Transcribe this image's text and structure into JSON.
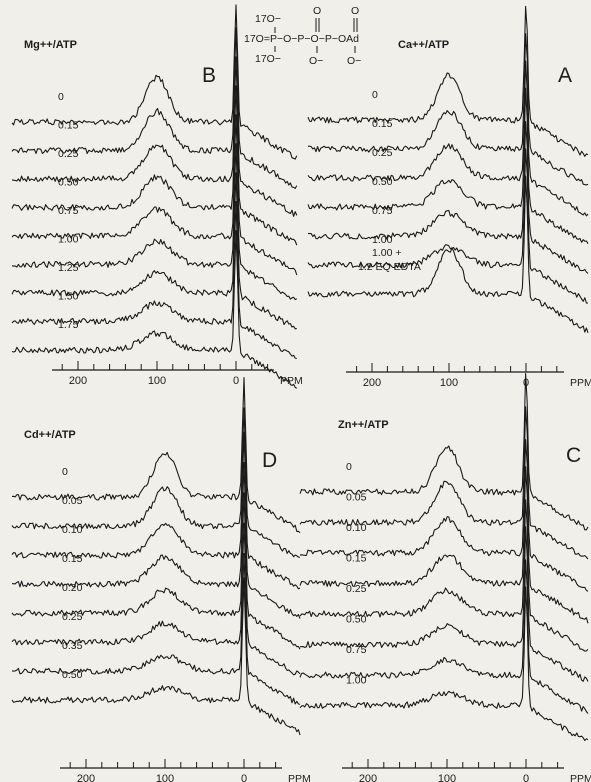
{
  "structure": {
    "top_line": "17O−",
    "mid_line": "17O=P−O−P−O−P−OAd",
    "bottom_line": "17O−",
    "double_bond_o": "O",
    "minus_o": "O−"
  },
  "chart_data": [
    {
      "type": "line",
      "panel": "B",
      "title": "Mg++/ATP",
      "letter": "B",
      "xlabel": "PPM",
      "x_ticks": [
        "200",
        "100",
        "0"
      ],
      "xlim": [
        230,
        -40
      ],
      "x_reversed": true,
      "series": [
        {
          "name": "0",
          "peak_ppm": 100,
          "peak_height": 1.0
        },
        {
          "name": "0.15",
          "peak_ppm": 100,
          "peak_height": 0.85
        },
        {
          "name": "0.25",
          "peak_ppm": 100,
          "peak_height": 0.72
        },
        {
          "name": "0.50",
          "peak_ppm": 100,
          "peak_height": 0.6
        },
        {
          "name": "0.75",
          "peak_ppm": 100,
          "peak_height": 0.5
        },
        {
          "name": "1.00",
          "peak_ppm": 100,
          "peak_height": 0.4
        },
        {
          "name": "1.25",
          "peak_ppm": 100,
          "peak_height": 0.32
        },
        {
          "name": "1.50",
          "peak_ppm": 100,
          "peak_height": 0.27
        },
        {
          "name": "1.75",
          "peak_ppm": 100,
          "peak_height": 0.23
        }
      ]
    },
    {
      "type": "line",
      "panel": "A",
      "title": "Ca++/ATP",
      "letter": "A",
      "xlabel": "PPM",
      "x_ticks": [
        "200",
        "100",
        "0"
      ],
      "xlim": [
        230,
        -40
      ],
      "x_reversed": true,
      "series": [
        {
          "name": "0",
          "peak_ppm": 100,
          "peak_height": 1.0
        },
        {
          "name": "0.15",
          "peak_ppm": 100,
          "peak_height": 0.8
        },
        {
          "name": "0.25",
          "peak_ppm": 100,
          "peak_height": 0.65
        },
        {
          "name": "0.50",
          "peak_ppm": 100,
          "peak_height": 0.52
        },
        {
          "name": "0.75",
          "peak_ppm": 100,
          "peak_height": 0.4
        },
        {
          "name": "1.00",
          "peak_ppm": 100,
          "peak_height": 0.3
        },
        {
          "name": "1.00 + 1.2 EQ EDTA",
          "peak_ppm": 100,
          "peak_height": 1.0
        }
      ]
    },
    {
      "type": "line",
      "panel": "D",
      "title": "Cd++/ATP",
      "letter": "D",
      "xlabel": "PPM",
      "x_ticks": [
        "200",
        "100",
        "0"
      ],
      "xlim": [
        230,
        -40
      ],
      "x_reversed": true,
      "series": [
        {
          "name": "0",
          "peak_ppm": 100,
          "peak_height": 1.0
        },
        {
          "name": "0.05",
          "peak_ppm": 100,
          "peak_height": 0.8
        },
        {
          "name": "0.10",
          "peak_ppm": 100,
          "peak_height": 0.65
        },
        {
          "name": "0.15",
          "peak_ppm": 100,
          "peak_height": 0.52
        },
        {
          "name": "0.20",
          "peak_ppm": 100,
          "peak_height": 0.4
        },
        {
          "name": "0.25",
          "peak_ppm": 100,
          "peak_height": 0.3
        },
        {
          "name": "0.35",
          "peak_ppm": 100,
          "peak_height": 0.2
        },
        {
          "name": "0.50",
          "peak_ppm": 100,
          "peak_height": 0.12
        }
      ]
    },
    {
      "type": "line",
      "panel": "C",
      "title": "Zn++/ATP",
      "letter": "C",
      "xlabel": "PPM",
      "x_ticks": [
        "200",
        "100",
        "0"
      ],
      "xlim": [
        230,
        -40
      ],
      "x_reversed": true,
      "series": [
        {
          "name": "0",
          "peak_ppm": 100,
          "peak_height": 1.0
        },
        {
          "name": "0.05",
          "peak_ppm": 100,
          "peak_height": 0.85
        },
        {
          "name": "0.10",
          "peak_ppm": 100,
          "peak_height": 0.7
        },
        {
          "name": "0.15",
          "peak_ppm": 100,
          "peak_height": 0.55
        },
        {
          "name": "0.25",
          "peak_ppm": 100,
          "peak_height": 0.42
        },
        {
          "name": "0.50",
          "peak_ppm": 100,
          "peak_height": 0.3
        },
        {
          "name": "0.75",
          "peak_ppm": 100,
          "peak_height": 0.2
        },
        {
          "name": "1.00",
          "peak_ppm": 100,
          "peak_height": 0.13
        }
      ]
    }
  ]
}
